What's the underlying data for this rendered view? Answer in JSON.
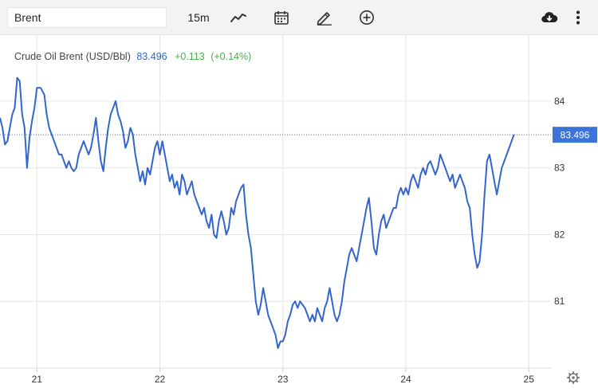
{
  "toolbar": {
    "symbol_value": "Brent",
    "interval_label": "15m"
  },
  "legend": {
    "name": "Crude Oil Brent (USD/Bbl)",
    "last": "83.496",
    "change": "+0.113",
    "change_pct": "(+0.14%)"
  },
  "colors": {
    "line": "#3366cc",
    "positive": "#4caf50",
    "last_label_bg": "#3b73d8"
  },
  "chart_data": {
    "type": "line",
    "title": "Crude Oil Brent (USD/Bbl)",
    "xlabel": "",
    "ylabel": "",
    "x_ticks": [
      {
        "label": "21",
        "x": 21.0
      },
      {
        "label": "22",
        "x": 22.0
      },
      {
        "label": "23",
        "x": 23.0
      },
      {
        "label": "24",
        "x": 24.0
      },
      {
        "label": "25",
        "x": 25.0
      }
    ],
    "y_ticks": [
      81,
      82,
      83,
      84
    ],
    "xlim": [
      20.7,
      25.18
    ],
    "ylim": [
      80.0,
      84.99
    ],
    "grid": true,
    "last_value": 83.496,
    "last_label": "83.496",
    "series": [
      {
        "name": "Crude Oil Brent (USD/Bbl)",
        "points": [
          [
            20.7,
            83.75
          ],
          [
            20.72,
            83.6
          ],
          [
            20.74,
            83.35
          ],
          [
            20.76,
            83.4
          ],
          [
            20.78,
            83.6
          ],
          [
            20.8,
            83.8
          ],
          [
            20.82,
            83.9
          ],
          [
            20.84,
            84.35
          ],
          [
            20.86,
            84.3
          ],
          [
            20.88,
            83.8
          ],
          [
            20.9,
            83.6
          ],
          [
            20.92,
            83.0
          ],
          [
            20.94,
            83.45
          ],
          [
            20.96,
            83.7
          ],
          [
            20.98,
            83.9
          ],
          [
            21.0,
            84.2
          ],
          [
            21.03,
            84.2
          ],
          [
            21.06,
            84.1
          ],
          [
            21.08,
            83.8
          ],
          [
            21.1,
            83.6
          ],
          [
            21.12,
            83.5
          ],
          [
            21.14,
            83.4
          ],
          [
            21.16,
            83.3
          ],
          [
            21.18,
            83.2
          ],
          [
            21.2,
            83.2
          ],
          [
            21.22,
            83.1
          ],
          [
            21.24,
            83.0
          ],
          [
            21.26,
            83.1
          ],
          [
            21.28,
            83.0
          ],
          [
            21.3,
            82.95
          ],
          [
            21.32,
            83.0
          ],
          [
            21.34,
            83.2
          ],
          [
            21.36,
            83.3
          ],
          [
            21.38,
            83.4
          ],
          [
            21.4,
            83.3
          ],
          [
            21.42,
            83.2
          ],
          [
            21.44,
            83.3
          ],
          [
            21.46,
            83.5
          ],
          [
            21.48,
            83.75
          ],
          [
            21.5,
            83.4
          ],
          [
            21.52,
            83.1
          ],
          [
            21.54,
            82.95
          ],
          [
            21.56,
            83.3
          ],
          [
            21.58,
            83.6
          ],
          [
            21.6,
            83.8
          ],
          [
            21.62,
            83.9
          ],
          [
            21.64,
            84.0
          ],
          [
            21.66,
            83.8
          ],
          [
            21.68,
            83.7
          ],
          [
            21.7,
            83.55
          ],
          [
            21.72,
            83.3
          ],
          [
            21.74,
            83.4
          ],
          [
            21.76,
            83.6
          ],
          [
            21.78,
            83.5
          ],
          [
            21.8,
            83.2
          ],
          [
            21.82,
            83.0
          ],
          [
            21.84,
            82.8
          ],
          [
            21.86,
            82.95
          ],
          [
            21.88,
            82.75
          ],
          [
            21.9,
            83.0
          ],
          [
            21.92,
            82.9
          ],
          [
            21.94,
            83.1
          ],
          [
            21.96,
            83.3
          ],
          [
            21.98,
            83.4
          ],
          [
            22.0,
            83.2
          ],
          [
            22.02,
            83.4
          ],
          [
            22.04,
            83.2
          ],
          [
            22.06,
            83.0
          ],
          [
            22.08,
            82.8
          ],
          [
            22.1,
            82.9
          ],
          [
            22.12,
            82.7
          ],
          [
            22.14,
            82.8
          ],
          [
            22.16,
            82.6
          ],
          [
            22.18,
            82.9
          ],
          [
            22.2,
            82.8
          ],
          [
            22.22,
            82.6
          ],
          [
            22.24,
            82.7
          ],
          [
            22.26,
            82.8
          ],
          [
            22.28,
            82.6
          ],
          [
            22.3,
            82.5
          ],
          [
            22.32,
            82.4
          ],
          [
            22.34,
            82.3
          ],
          [
            22.36,
            82.4
          ],
          [
            22.38,
            82.2
          ],
          [
            22.4,
            82.1
          ],
          [
            22.42,
            82.3
          ],
          [
            22.44,
            82.0
          ],
          [
            22.46,
            81.95
          ],
          [
            22.48,
            82.2
          ],
          [
            22.5,
            82.35
          ],
          [
            22.52,
            82.2
          ],
          [
            22.54,
            82.0
          ],
          [
            22.56,
            82.1
          ],
          [
            22.58,
            82.4
          ],
          [
            22.6,
            82.3
          ],
          [
            22.62,
            82.5
          ],
          [
            22.64,
            82.6
          ],
          [
            22.66,
            82.7
          ],
          [
            22.68,
            82.75
          ],
          [
            22.7,
            82.3
          ],
          [
            22.72,
            82.0
          ],
          [
            22.74,
            81.8
          ],
          [
            22.76,
            81.4
          ],
          [
            22.78,
            81.0
          ],
          [
            22.8,
            80.8
          ],
          [
            22.82,
            80.95
          ],
          [
            22.84,
            81.2
          ],
          [
            22.86,
            81.0
          ],
          [
            22.88,
            80.8
          ],
          [
            22.9,
            80.7
          ],
          [
            22.92,
            80.6
          ],
          [
            22.94,
            80.5
          ],
          [
            22.96,
            80.3
          ],
          [
            22.98,
            80.4
          ],
          [
            23.0,
            80.4
          ],
          [
            23.02,
            80.5
          ],
          [
            23.04,
            80.7
          ],
          [
            23.06,
            80.8
          ],
          [
            23.08,
            80.95
          ],
          [
            23.1,
            81.0
          ],
          [
            23.12,
            80.9
          ],
          [
            23.14,
            81.0
          ],
          [
            23.16,
            80.95
          ],
          [
            23.18,
            80.9
          ],
          [
            23.2,
            80.8
          ],
          [
            23.22,
            80.7
          ],
          [
            23.24,
            80.8
          ],
          [
            23.26,
            80.7
          ],
          [
            23.28,
            80.9
          ],
          [
            23.3,
            80.8
          ],
          [
            23.32,
            80.7
          ],
          [
            23.34,
            80.9
          ],
          [
            23.36,
            81.0
          ],
          [
            23.38,
            81.2
          ],
          [
            23.4,
            81.0
          ],
          [
            23.42,
            80.8
          ],
          [
            23.44,
            80.7
          ],
          [
            23.46,
            80.8
          ],
          [
            23.48,
            81.0
          ],
          [
            23.5,
            81.3
          ],
          [
            23.52,
            81.5
          ],
          [
            23.54,
            81.7
          ],
          [
            23.56,
            81.8
          ],
          [
            23.58,
            81.7
          ],
          [
            23.6,
            81.6
          ],
          [
            23.62,
            81.8
          ],
          [
            23.64,
            82.0
          ],
          [
            23.66,
            82.2
          ],
          [
            23.68,
            82.4
          ],
          [
            23.7,
            82.55
          ],
          [
            23.72,
            82.2
          ],
          [
            23.74,
            81.8
          ],
          [
            23.76,
            81.7
          ],
          [
            23.78,
            82.0
          ],
          [
            23.8,
            82.2
          ],
          [
            23.82,
            82.3
          ],
          [
            23.84,
            82.1
          ],
          [
            23.86,
            82.2
          ],
          [
            23.88,
            82.3
          ],
          [
            23.9,
            82.4
          ],
          [
            23.92,
            82.4
          ],
          [
            23.94,
            82.6
          ],
          [
            23.96,
            82.7
          ],
          [
            23.98,
            82.6
          ],
          [
            24.0,
            82.7
          ],
          [
            24.02,
            82.6
          ],
          [
            24.04,
            82.8
          ],
          [
            24.06,
            82.9
          ],
          [
            24.08,
            82.8
          ],
          [
            24.1,
            82.7
          ],
          [
            24.12,
            82.9
          ],
          [
            24.14,
            83.0
          ],
          [
            24.16,
            82.9
          ],
          [
            24.18,
            83.05
          ],
          [
            24.2,
            83.1
          ],
          [
            24.22,
            83.0
          ],
          [
            24.24,
            82.9
          ],
          [
            24.26,
            83.0
          ],
          [
            24.28,
            83.2
          ],
          [
            24.3,
            83.1
          ],
          [
            24.32,
            83.0
          ],
          [
            24.34,
            82.9
          ],
          [
            24.36,
            82.8
          ],
          [
            24.38,
            82.9
          ],
          [
            24.4,
            82.7
          ],
          [
            24.42,
            82.8
          ],
          [
            24.44,
            82.9
          ],
          [
            24.46,
            82.8
          ],
          [
            24.48,
            82.7
          ],
          [
            24.5,
            82.5
          ],
          [
            24.52,
            82.4
          ],
          [
            24.54,
            82.0
          ],
          [
            24.56,
            81.7
          ],
          [
            24.58,
            81.5
          ],
          [
            24.6,
            81.6
          ],
          [
            24.62,
            82.0
          ],
          [
            24.64,
            82.6
          ],
          [
            24.66,
            83.1
          ],
          [
            24.68,
            83.2
          ],
          [
            24.7,
            83.0
          ],
          [
            24.72,
            82.8
          ],
          [
            24.74,
            82.6
          ],
          [
            24.76,
            82.8
          ],
          [
            24.78,
            83.0
          ],
          [
            24.8,
            83.1
          ],
          [
            24.82,
            83.2
          ],
          [
            24.84,
            83.3
          ],
          [
            24.86,
            83.4
          ],
          [
            24.88,
            83.5
          ]
        ]
      }
    ]
  }
}
